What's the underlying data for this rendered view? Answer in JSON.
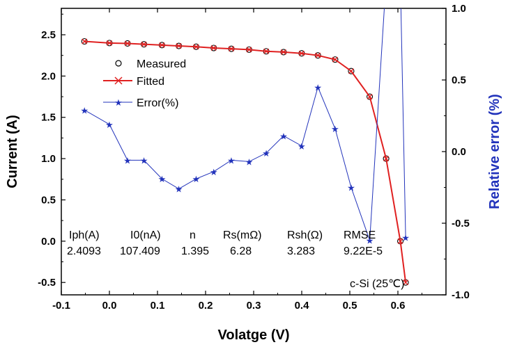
{
  "chart_data": {
    "type": "line",
    "xlabel": "Volatge (V)",
    "ylabel": "Current (A)",
    "y2label": "Relative error (%)",
    "xlim": [
      -0.1,
      0.7
    ],
    "ylim": [
      -0.65,
      2.82
    ],
    "y2lim": [
      -1.0,
      1.0
    ],
    "x_ticks": [
      "-0.1",
      "0.0",
      "0.1",
      "0.2",
      "0.3",
      "0.4",
      "0.5",
      "0.6"
    ],
    "x_tick_values": [
      -0.1,
      0.0,
      0.1,
      0.2,
      0.3,
      0.4,
      0.5,
      0.6
    ],
    "y_ticks": [
      "-0.5",
      "0.0",
      "0.5",
      "1.0",
      "1.5",
      "2.0",
      "2.5"
    ],
    "y_tick_values": [
      -0.5,
      0.0,
      0.5,
      1.0,
      1.5,
      2.0,
      2.5
    ],
    "y2_ticks": [
      "-1.0",
      "-0.5",
      "0.0",
      "0.5",
      "1.0"
    ],
    "y2_tick_values": [
      -1.0,
      -0.5,
      0.0,
      0.5,
      1.0
    ],
    "series": [
      {
        "name": "Measured",
        "axis": "left",
        "marker": "circle",
        "color": "#000000",
        "x": [
          -0.0519,
          0.0,
          0.0376,
          0.0718,
          0.1093,
          0.1444,
          0.1804,
          0.2169,
          0.2536,
          0.2905,
          0.3262,
          0.3622,
          0.3998,
          0.4336,
          0.4694,
          0.5028,
          0.5414,
          0.5755,
          0.6051,
          0.6161
        ],
        "values": [
          2.42,
          2.4,
          2.395,
          2.385,
          2.375,
          2.365,
          2.355,
          2.34,
          2.33,
          2.32,
          2.3,
          2.29,
          2.275,
          2.25,
          2.2,
          2.06,
          1.75,
          1.0,
          0.0,
          -0.5
        ]
      },
      {
        "name": "Fitted",
        "axis": "left",
        "marker": "x",
        "color": "#e02020",
        "x": [
          -0.0519,
          0.0,
          0.0376,
          0.0718,
          0.1093,
          0.1444,
          0.1804,
          0.2169,
          0.2536,
          0.2905,
          0.3262,
          0.3622,
          0.3998,
          0.4336,
          0.4694,
          0.5028,
          0.5414,
          0.5755,
          0.6051,
          0.6161
        ],
        "values": [
          2.42,
          2.4,
          2.395,
          2.385,
          2.375,
          2.365,
          2.355,
          2.34,
          2.33,
          2.32,
          2.3,
          2.29,
          2.275,
          2.25,
          2.2,
          2.06,
          1.75,
          1.0,
          0.0,
          -0.5
        ]
      },
      {
        "name": "Error(%)",
        "axis": "right",
        "marker": "star",
        "color": "#2233bb",
        "x": [
          -0.0519,
          0.0,
          0.0376,
          0.0718,
          0.1093,
          0.1444,
          0.1804,
          0.2169,
          0.2536,
          0.2905,
          0.3262,
          0.3622,
          0.3998,
          0.4336,
          0.4694,
          0.5028,
          0.5414,
          0.6161
        ],
        "values": [
          0.29,
          0.19,
          -0.06,
          -0.06,
          -0.19,
          -0.26,
          -0.19,
          -0.14,
          -0.06,
          -0.07,
          -0.01,
          0.11,
          0.04,
          0.45,
          0.16,
          -0.25,
          -0.62,
          -0.6
        ],
        "offscale_segment": {
          "x": [
            0.5414,
            0.5755,
            0.6051,
            0.6161
          ],
          "values": [
            -0.62,
            1.2,
            1.2,
            -0.6
          ]
        }
      }
    ],
    "legend": {
      "position": "top-left",
      "entries": [
        "Measured",
        "Fitted",
        "Error(%)"
      ]
    },
    "parameters": {
      "headers": [
        "Iph(A)",
        "I0(nA)",
        "n",
        "Rs(mΩ)",
        "Rsh(Ω)",
        "RMSE"
      ],
      "values": [
        "2.4093",
        "107.409",
        "1.395",
        "6.28",
        "3.283",
        "9.22E-5"
      ]
    },
    "annotation": "c-Si (25℃)",
    "grid": false,
    "colors": {
      "axis": "#000000",
      "measured": "#000000",
      "fitted": "#e02020",
      "error": "#2233bb",
      "right_axis_title": "#2233bb"
    }
  }
}
